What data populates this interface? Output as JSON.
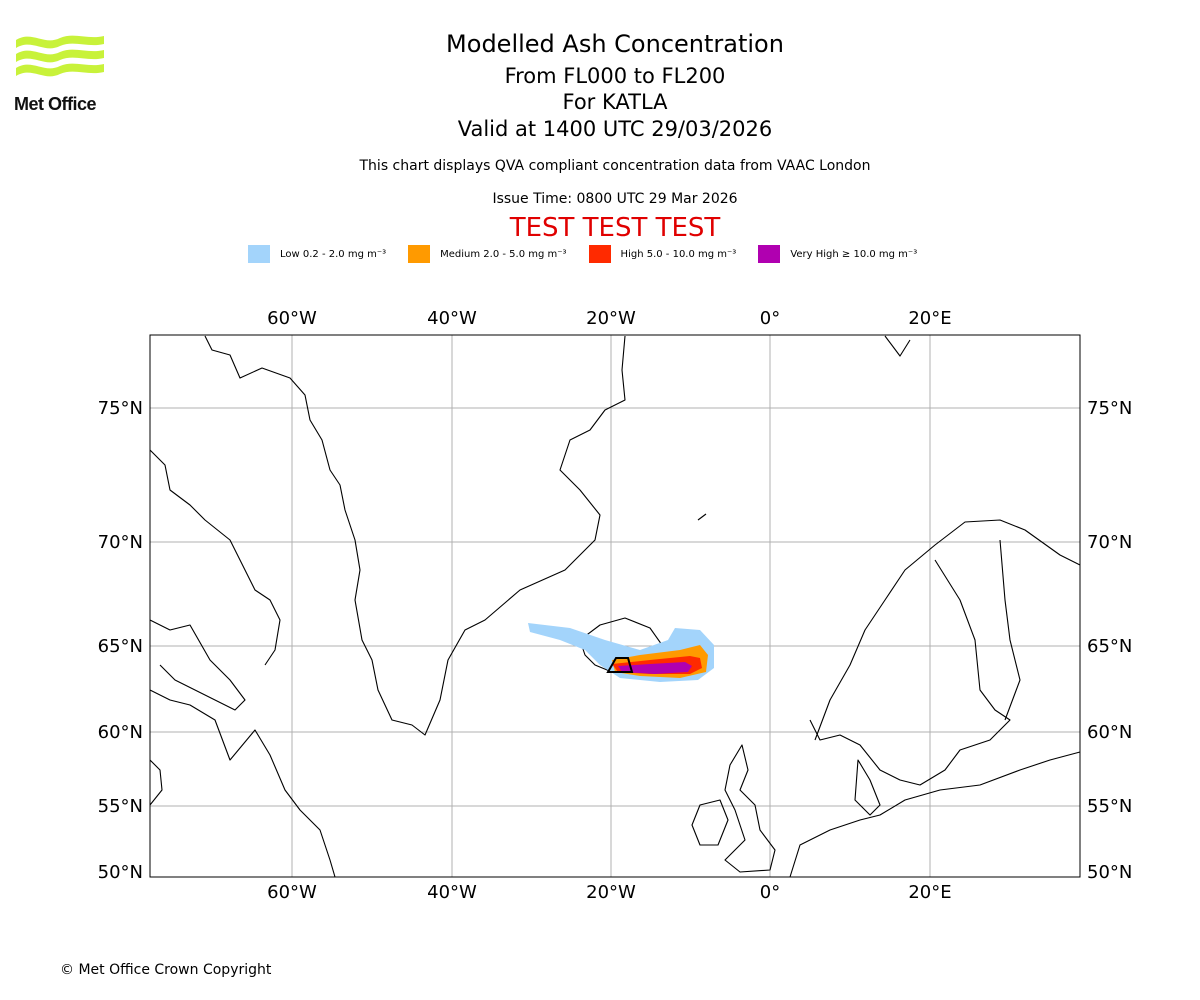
{
  "logo": {
    "text": "Met Office",
    "wave_color": "#c8f23a"
  },
  "header": {
    "title": "Modelled Ash Concentration",
    "levels": "From FL000 to FL200",
    "volcano": "For KATLA",
    "valid": "Valid at 1400 UTC 29/03/2026",
    "description": "This chart displays QVA compliant concentration data from VAAC London",
    "issue_time": "Issue Time: 0800 UTC 29 Mar 2026",
    "test_banner": "TEST TEST TEST"
  },
  "legend": [
    {
      "label": "Low 0.2 - 2.0 mg m⁻³",
      "color": "#a3d4fb"
    },
    {
      "label": "Medium 2.0 - 5.0 mg m⁻³",
      "color": "#ff9a00"
    },
    {
      "label": "High 5.0 - 10.0 mg m⁻³",
      "color": "#ff2a00"
    },
    {
      "label": "Very High ≥ 10.0 mg m⁻³",
      "color": "#b000b0"
    }
  ],
  "map": {
    "lon_labels": [
      "60°W",
      "40°W",
      "20°W",
      "0°",
      "20°E"
    ],
    "lat_labels": [
      "75°N",
      "70°N",
      "65°N",
      "60°N",
      "55°N",
      "50°N"
    ]
  },
  "footer": {
    "copyright": "© Met Office Crown Copyright"
  }
}
